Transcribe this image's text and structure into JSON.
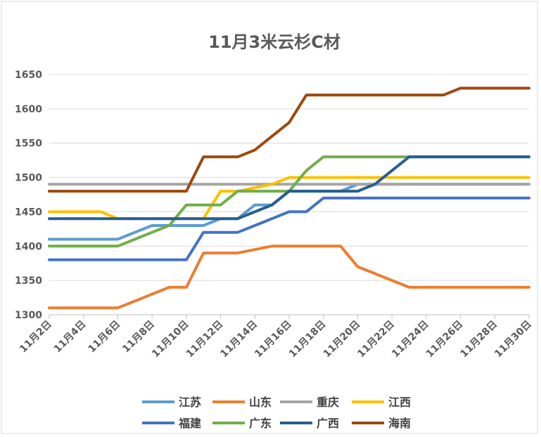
{
  "chart_data": {
    "type": "line",
    "title": "11月3米云杉C材",
    "xlabel": "",
    "ylabel": "",
    "ylim": [
      1300,
      1650
    ],
    "yticks": [
      1300,
      1350,
      1400,
      1450,
      1500,
      1550,
      1600,
      1650
    ],
    "x": [
      2,
      3,
      4,
      5,
      6,
      7,
      8,
      9,
      10,
      11,
      12,
      13,
      14,
      15,
      16,
      17,
      18,
      19,
      20,
      21,
      22,
      23,
      24,
      25,
      26,
      27,
      28,
      29,
      30
    ],
    "xtick_labels": [
      "11月2日",
      "11月4日",
      "11月6日",
      "11月8日",
      "11月10日",
      "11月12日",
      "11月14日",
      "11月16日",
      "11月18日",
      "11月20日",
      "11月22日",
      "11月24日",
      "11月26日",
      "11月28日",
      "11月30日"
    ],
    "grid": true,
    "legend_position": "bottom",
    "series": [
      {
        "name": "江苏",
        "color": "#5B9BD5",
        "values": [
          1410,
          1410,
          1410,
          1410,
          1410,
          1420,
          1430,
          1430,
          1430,
          1430,
          1440,
          1440,
          1460,
          1460,
          1480,
          1480,
          1480,
          1480,
          1490,
          1490,
          1490,
          1490,
          1490,
          1490,
          1490,
          1490,
          1490,
          1490,
          1490
        ]
      },
      {
        "name": "山东",
        "color": "#ED7D31",
        "values": [
          1310,
          1310,
          1310,
          1310,
          1310,
          1320,
          1330,
          1340,
          1340,
          1390,
          1390,
          1390,
          1395,
          1400,
          1400,
          1400,
          1400,
          1400,
          1370,
          1360,
          1350,
          1340,
          1340,
          1340,
          1340,
          1340,
          1340,
          1340,
          1340
        ]
      },
      {
        "name": "重庆",
        "color": "#A5A5A5",
        "values": [
          1490,
          1490,
          1490,
          1490,
          1490,
          1490,
          1490,
          1490,
          1490,
          1490,
          1490,
          1490,
          1490,
          1490,
          1490,
          1490,
          1490,
          1490,
          1490,
          1490,
          1490,
          1490,
          1490,
          1490,
          1490,
          1490,
          1490,
          1490,
          1490
        ]
      },
      {
        "name": "江西",
        "color": "#FFC000",
        "values": [
          1450,
          1450,
          1450,
          1450,
          1440,
          1440,
          1440,
          1440,
          1440,
          1440,
          1480,
          1480,
          1485,
          1490,
          1500,
          1500,
          1500,
          1500,
          1500,
          1500,
          1500,
          1500,
          1500,
          1500,
          1500,
          1500,
          1500,
          1500,
          1500
        ]
      },
      {
        "name": "福建",
        "color": "#4472C4",
        "values": [
          1380,
          1380,
          1380,
          1380,
          1380,
          1380,
          1380,
          1380,
          1380,
          1420,
          1420,
          1420,
          1430,
          1440,
          1450,
          1450,
          1470,
          1470,
          1470,
          1470,
          1470,
          1470,
          1470,
          1470,
          1470,
          1470,
          1470,
          1470,
          1470
        ]
      },
      {
        "name": "广东",
        "color": "#70AD47",
        "values": [
          1400,
          1400,
          1400,
          1400,
          1400,
          1410,
          1420,
          1430,
          1460,
          1460,
          1460,
          1480,
          1480,
          1480,
          1480,
          1510,
          1530,
          1530,
          1530,
          1530,
          1530,
          1530,
          1530,
          1530,
          1530,
          1530,
          1530,
          1530,
          1530
        ]
      },
      {
        "name": "广西",
        "color": "#255E91",
        "values": [
          1440,
          1440,
          1440,
          1440,
          1440,
          1440,
          1440,
          1440,
          1440,
          1440,
          1440,
          1440,
          1450,
          1460,
          1480,
          1480,
          1480,
          1480,
          1480,
          1490,
          1510,
          1530,
          1530,
          1530,
          1530,
          1530,
          1530,
          1530,
          1530
        ]
      },
      {
        "name": "海南",
        "color": "#9E480E",
        "values": [
          1480,
          1480,
          1480,
          1480,
          1480,
          1480,
          1480,
          1480,
          1480,
          1530,
          1530,
          1530,
          1540,
          1560,
          1580,
          1620,
          1620,
          1620,
          1620,
          1620,
          1620,
          1620,
          1620,
          1620,
          1630,
          1630,
          1630,
          1630,
          1630
        ]
      }
    ]
  }
}
